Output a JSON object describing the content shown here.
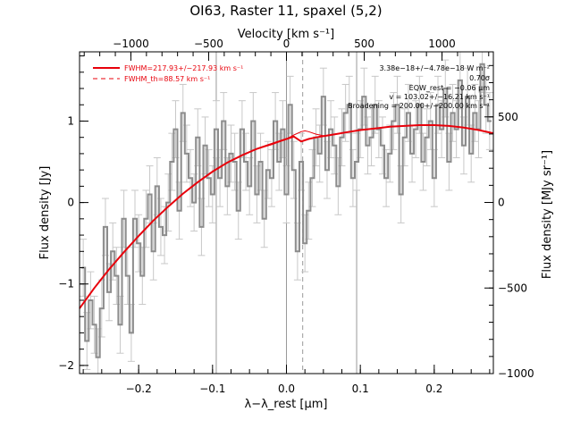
{
  "chart_data": {
    "type": "line",
    "title": "OI63, Raster 11, spaxel (5,2)",
    "top_axis_label": "Velocity [km s⁻¹]",
    "xlabel": "λ−λ_rest [μm]",
    "ylabel": "Flux density [Jy]",
    "right_ylabel": "Flux density [MJy sr⁻¹]",
    "xlim": [
      -0.28,
      0.28
    ],
    "ylim": [
      -2.1,
      1.85
    ],
    "right_ylim": [
      -1000,
      880
    ],
    "top_xlim": [
      -1330,
      1330
    ],
    "x_ticks": [
      -0.2,
      -0.1,
      0.0,
      0.1,
      0.2
    ],
    "x_tick_labels": [
      "−0.2",
      "−0.1",
      "0.0",
      "0.1",
      "0.2"
    ],
    "y_ticks": [
      -2,
      -1,
      0,
      1
    ],
    "y_tick_labels": [
      "−2",
      "−1",
      "0",
      "1"
    ],
    "right_ticks": [
      -1000,
      -500,
      0,
      500
    ],
    "right_tick_labels": [
      "−1000",
      "−500",
      "0",
      "500"
    ],
    "top_ticks": [
      -1000,
      -500,
      0,
      500,
      1000
    ],
    "top_tick_labels": [
      "−1000",
      "−500",
      "0",
      "500",
      "1000"
    ],
    "vertical_lines": {
      "solid": [
        -0.095,
        0.0,
        0.095
      ],
      "dashed": [
        0.022
      ]
    },
    "legend": [
      {
        "label": "FWHM=217.93+/−217.93 km s⁻¹",
        "style": "solid",
        "color": "#e8000b"
      },
      {
        "label": "FWHM_th=88.57 km s⁻¹",
        "style": "dashed",
        "color": "#e8000b"
      }
    ],
    "annotations": [
      "3.38e−18+/−4.78e−18 W m⁻²",
      "0.70σ",
      "EQW_rest = −0.06 μm",
      "v = 103.02+/−16.21 km s⁻¹",
      "Broadening = 200.00+/−200.00 km s⁻¹"
    ],
    "colors": {
      "data": "#8c8c8c",
      "error": "#c8c8c8",
      "fit": "#e8000b",
      "vlines": "#999999"
    },
    "series": [
      {
        "role": "spectrum",
        "step": true,
        "x": [
          -0.275,
          -0.27,
          -0.265,
          -0.26,
          -0.255,
          -0.25,
          -0.245,
          -0.24,
          -0.235,
          -0.23,
          -0.225,
          -0.22,
          -0.215,
          -0.21,
          -0.205,
          -0.2,
          -0.195,
          -0.19,
          -0.185,
          -0.18,
          -0.175,
          -0.17,
          -0.165,
          -0.16,
          -0.155,
          -0.15,
          -0.145,
          -0.14,
          -0.135,
          -0.13,
          -0.125,
          -0.12,
          -0.115,
          -0.11,
          -0.105,
          -0.1,
          -0.095,
          -0.09,
          -0.085,
          -0.08,
          -0.075,
          -0.07,
          -0.065,
          -0.06,
          -0.055,
          -0.05,
          -0.045,
          -0.04,
          -0.035,
          -0.03,
          -0.025,
          -0.02,
          -0.015,
          -0.01,
          -0.005,
          0.0,
          0.005,
          0.01,
          0.015,
          0.02,
          0.025,
          0.03,
          0.035,
          0.04,
          0.045,
          0.05,
          0.055,
          0.06,
          0.065,
          0.07,
          0.075,
          0.08,
          0.085,
          0.09,
          0.095,
          0.1,
          0.105,
          0.11,
          0.115,
          0.12,
          0.125,
          0.13,
          0.135,
          0.14,
          0.145,
          0.15,
          0.155,
          0.16,
          0.165,
          0.17,
          0.175,
          0.18,
          0.185,
          0.19,
          0.195,
          0.2,
          0.205,
          0.21,
          0.215,
          0.22,
          0.225,
          0.23,
          0.235,
          0.24,
          0.245,
          0.25,
          0.255,
          0.26,
          0.265,
          0.27,
          0.275
        ],
        "y": [
          -0.8,
          -1.7,
          -1.2,
          -1.5,
          -1.9,
          -1.3,
          -0.3,
          -1.1,
          -0.6,
          -0.9,
          -1.5,
          -0.2,
          -0.9,
          -1.6,
          -0.2,
          -0.5,
          -0.9,
          -0.2,
          0.1,
          -0.6,
          0.2,
          -0.3,
          -0.4,
          0.0,
          0.5,
          0.9,
          -0.1,
          1.1,
          0.6,
          0.3,
          0.0,
          0.8,
          -0.3,
          0.7,
          0.3,
          0.1,
          0.9,
          0.3,
          1.0,
          0.2,
          0.6,
          0.5,
          -0.1,
          0.9,
          0.5,
          0.2,
          1.0,
          0.1,
          0.5,
          -0.2,
          0.4,
          0.3,
          1.0,
          0.5,
          0.9,
          0.1,
          1.2,
          0.4,
          -0.6,
          0.5,
          -0.5,
          -0.1,
          0.3,
          0.8,
          0.6,
          1.3,
          0.4,
          0.9,
          0.7,
          0.2,
          0.8,
          1.1,
          1.2,
          0.3,
          0.5,
          0.9,
          1.3,
          0.7,
          0.8,
          1.2,
          0.9,
          0.7,
          0.3,
          0.6,
          1.0,
          1.2,
          0.1,
          0.8,
          1.1,
          0.6,
          0.9,
          1.2,
          0.5,
          0.8,
          1.0,
          0.3,
          1.2,
          0.9,
          1.4,
          0.5,
          1.1,
          0.9,
          1.5,
          0.7,
          1.3,
          0.6,
          1.1,
          0.9,
          1.7,
          1.2,
          1.0
        ],
        "err": 0.35
      },
      {
        "role": "fit",
        "x": [
          -0.28,
          -0.26,
          -0.24,
          -0.22,
          -0.2,
          -0.18,
          -0.16,
          -0.14,
          -0.12,
          -0.1,
          -0.08,
          -0.06,
          -0.04,
          -0.02,
          0.0,
          0.01,
          0.02,
          0.03,
          0.04,
          0.06,
          0.08,
          0.1,
          0.12,
          0.14,
          0.16,
          0.18,
          0.2,
          0.22,
          0.24,
          0.26,
          0.28
        ],
        "y": [
          -1.3,
          -1.05,
          -0.82,
          -0.61,
          -0.41,
          -0.22,
          -0.05,
          0.11,
          0.25,
          0.38,
          0.49,
          0.58,
          0.66,
          0.72,
          0.78,
          0.81,
          0.75,
          0.78,
          0.8,
          0.83,
          0.86,
          0.89,
          0.91,
          0.93,
          0.94,
          0.95,
          0.95,
          0.94,
          0.92,
          0.89,
          0.85
        ]
      },
      {
        "role": "fit_component",
        "x": [
          -0.04,
          -0.02,
          0.0,
          0.01,
          0.02,
          0.025,
          0.03,
          0.04,
          0.05,
          0.06
        ],
        "y": [
          0.66,
          0.71,
          0.78,
          0.83,
          0.87,
          0.88,
          0.87,
          0.84,
          0.82,
          0.83
        ]
      }
    ]
  }
}
